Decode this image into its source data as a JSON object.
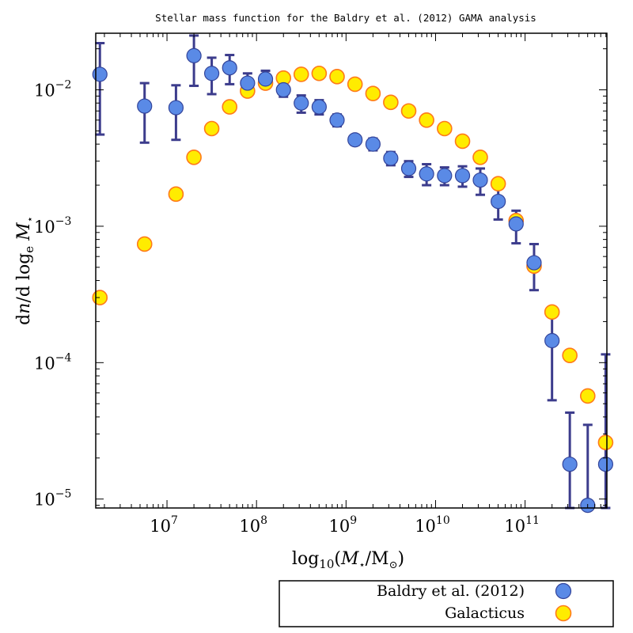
{
  "chart_data": {
    "type": "scatter",
    "title": "Stellar mass function for the Baldry et al. (2012) GAMA analysis",
    "xlabel": "log10(M⋆/M⊙)",
    "ylabel": "dn/d loge M⋆",
    "xscale": "log",
    "yscale": "log",
    "xlim": [
      1600000.0,
      820000000000.0
    ],
    "ylim": [
      8.6e-06,
      0.026
    ],
    "x_ticks": [
      {
        "value": 10000000.0,
        "base": "10",
        "exp": "7"
      },
      {
        "value": 100000000.0,
        "base": "10",
        "exp": "8"
      },
      {
        "value": 1000000000.0,
        "base": "10",
        "exp": "9"
      },
      {
        "value": 10000000000.0,
        "base": "10",
        "exp": "10"
      },
      {
        "value": 100000000000.0,
        "base": "10",
        "exp": "11"
      }
    ],
    "y_ticks": [
      {
        "value": 1e-05,
        "base": "10",
        "exp": "−5"
      },
      {
        "value": 0.0001,
        "base": "10",
        "exp": "−4"
      },
      {
        "value": 0.001,
        "base": "10",
        "exp": "−3"
      },
      {
        "value": 0.01,
        "base": "10",
        "exp": "−2"
      }
    ],
    "legend_position": "bottom",
    "series": [
      {
        "name": "Baldry et al. (2012)",
        "fill": "#5a8ae6",
        "edge": "#33449a",
        "errorbar_color": "#3c3c8c",
        "points": [
          {
            "x": 1780000.0,
            "y": 0.013,
            "lo": 0.0047,
            "hi": 0.022
          },
          {
            "x": 5620000.0,
            "y": 0.0076,
            "lo": 0.0041,
            "hi": 0.0112
          },
          {
            "x": 12600000.0,
            "y": 0.0074,
            "lo": 0.0043,
            "hi": 0.0108
          },
          {
            "x": 20000000.0,
            "y": 0.0178,
            "lo": 0.0107,
            "hi": 0.025
          },
          {
            "x": 31600000.0,
            "y": 0.0132,
            "lo": 0.0093,
            "hi": 0.0172
          },
          {
            "x": 50100000.0,
            "y": 0.0145,
            "lo": 0.011,
            "hi": 0.018
          },
          {
            "x": 79400000.0,
            "y": 0.0112,
            "lo": 0.0096,
            "hi": 0.0132
          },
          {
            "x": 126000000.0,
            "y": 0.012,
            "lo": 0.0103,
            "hi": 0.0138
          },
          {
            "x": 200000000.0,
            "y": 0.01,
            "lo": 0.0089,
            "hi": 0.0112
          },
          {
            "x": 316000000.0,
            "y": 0.008,
            "lo": 0.0068,
            "hi": 0.0091
          },
          {
            "x": 501000000.0,
            "y": 0.0075,
            "lo": 0.0066,
            "hi": 0.0084
          },
          {
            "x": 794000000.0,
            "y": 0.006,
            "lo": 0.0054,
            "hi": 0.0066
          },
          {
            "x": 1260000000.0,
            "y": 0.0043,
            "lo": 0.00395,
            "hi": 0.00465
          },
          {
            "x": 2000000000.0,
            "y": 0.004,
            "lo": 0.0036,
            "hi": 0.0044
          },
          {
            "x": 3160000000.0,
            "y": 0.00315,
            "lo": 0.0028,
            "hi": 0.0035
          },
          {
            "x": 5010000000.0,
            "y": 0.00265,
            "lo": 0.0023,
            "hi": 0.003
          },
          {
            "x": 7940000000.0,
            "y": 0.00242,
            "lo": 0.002,
            "hi": 0.00285
          },
          {
            "x": 12600000000.0,
            "y": 0.00235,
            "lo": 0.002,
            "hi": 0.0027
          },
          {
            "x": 20000000000.0,
            "y": 0.00235,
            "lo": 0.00195,
            "hi": 0.00275
          },
          {
            "x": 31600000000.0,
            "y": 0.00218,
            "lo": 0.0017,
            "hi": 0.00265
          },
          {
            "x": 50100000000.0,
            "y": 0.00152,
            "lo": 0.00112,
            "hi": 0.0019
          },
          {
            "x": 79400000000.0,
            "y": 0.00104,
            "lo": 0.00075,
            "hi": 0.0013
          },
          {
            "x": 126000000000.0,
            "y": 0.00054,
            "lo": 0.00034,
            "hi": 0.00074
          },
          {
            "x": 200000000000.0,
            "y": 0.000145,
            "lo": 5.3e-05,
            "hi": 0.00024
          },
          {
            "x": 316000000000.0,
            "y": 1.8e-05,
            "lo": 8.6e-06,
            "hi": 4.3e-05
          },
          {
            "x": 501000000000.0,
            "y": 9e-06,
            "lo": 8.6e-06,
            "hi": 3.5e-05
          },
          {
            "x": 794000000000.0,
            "y": 1.8e-05,
            "lo": 8.6e-06,
            "hi": 0.000115
          }
        ]
      },
      {
        "name": "Galacticus",
        "fill": "#ffec00",
        "edge": "#ff7a1a",
        "points": [
          {
            "x": 1780000.0,
            "y": 0.0003
          },
          {
            "x": 5620000.0,
            "y": 0.00074
          },
          {
            "x": 12600000.0,
            "y": 0.00172
          },
          {
            "x": 20000000.0,
            "y": 0.0032
          },
          {
            "x": 31600000.0,
            "y": 0.0052
          },
          {
            "x": 50100000.0,
            "y": 0.0075
          },
          {
            "x": 79400000.0,
            "y": 0.0098
          },
          {
            "x": 126000000.0,
            "y": 0.0112
          },
          {
            "x": 200000000.0,
            "y": 0.0122
          },
          {
            "x": 316000000.0,
            "y": 0.013
          },
          {
            "x": 501000000.0,
            "y": 0.0132
          },
          {
            "x": 794000000.0,
            "y": 0.0125
          },
          {
            "x": 1260000000.0,
            "y": 0.011
          },
          {
            "x": 2000000000.0,
            "y": 0.0094
          },
          {
            "x": 3160000000.0,
            "y": 0.0081
          },
          {
            "x": 5010000000.0,
            "y": 0.007
          },
          {
            "x": 7940000000.0,
            "y": 0.006
          },
          {
            "x": 12600000000.0,
            "y": 0.0052
          },
          {
            "x": 20000000000.0,
            "y": 0.0042
          },
          {
            "x": 31600000000.0,
            "y": 0.0032
          },
          {
            "x": 50100000000.0,
            "y": 0.00205
          },
          {
            "x": 79400000000.0,
            "y": 0.0011
          },
          {
            "x": 126000000000.0,
            "y": 0.00051
          },
          {
            "x": 200000000000.0,
            "y": 0.000235
          },
          {
            "x": 316000000000.0,
            "y": 0.000113
          },
          {
            "x": 501000000000.0,
            "y": 5.7e-05
          },
          {
            "x": 794000000000.0,
            "y": 2.6e-05
          }
        ]
      }
    ]
  }
}
